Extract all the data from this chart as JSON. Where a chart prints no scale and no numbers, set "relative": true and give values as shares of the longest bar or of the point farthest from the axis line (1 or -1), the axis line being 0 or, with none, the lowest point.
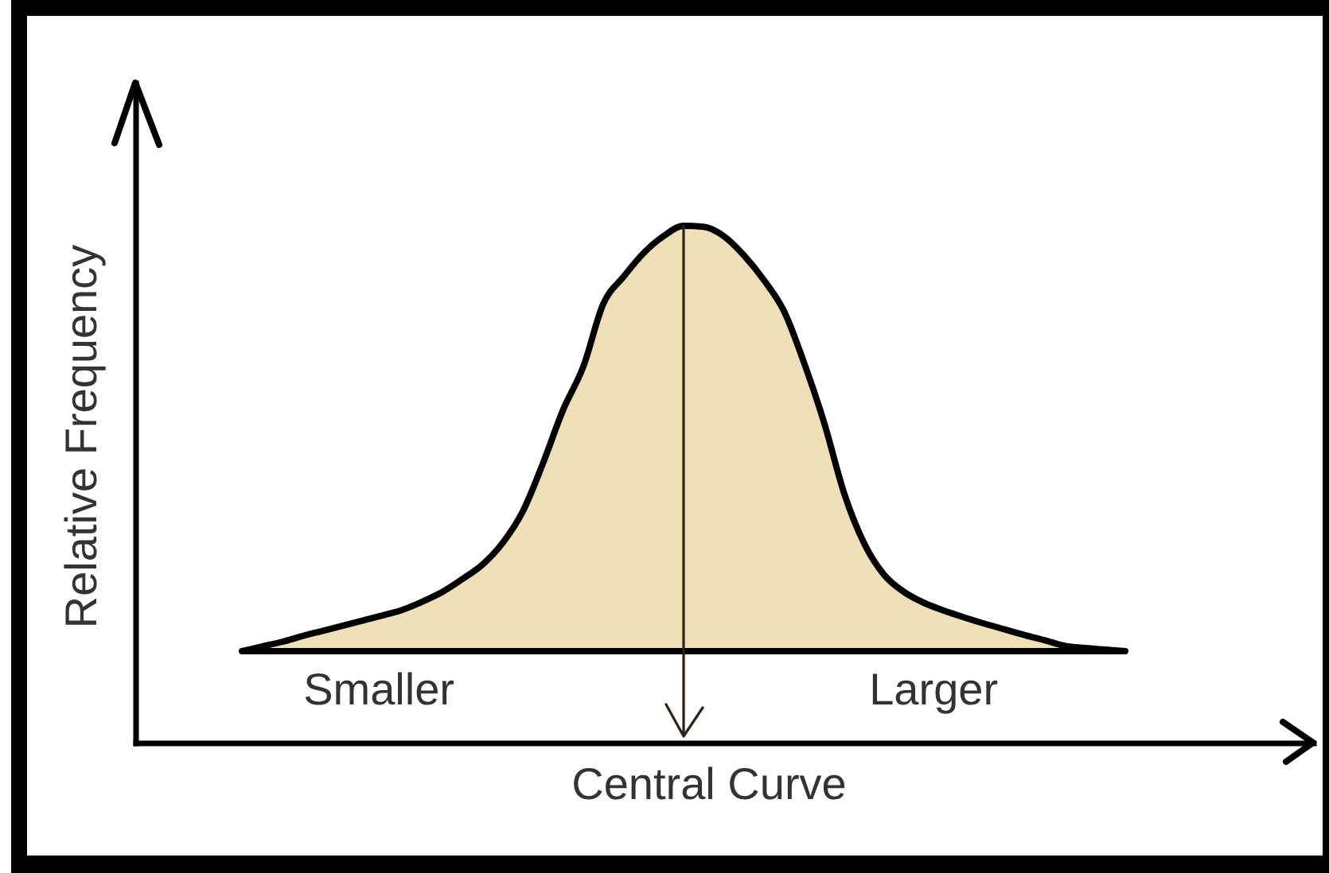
{
  "chart_data": {
    "type": "area",
    "relative": true,
    "ylabel": "Relative Frequency",
    "xlabel": "Central Curve",
    "annotations": [
      "Smaller",
      "Larger"
    ],
    "color": "#efe0b7",
    "categories": [
      null,
      null,
      null,
      null,
      null,
      null,
      null,
      null,
      null,
      null,
      null,
      null,
      null,
      null,
      null,
      null,
      null,
      null,
      null,
      null,
      null,
      null,
      null,
      null,
      null,
      null,
      null,
      null,
      null,
      null,
      null,
      null,
      null,
      null,
      null,
      null,
      null,
      null,
      null,
      null,
      null,
      null,
      null,
      null,
      null
    ],
    "values": [
      0.177,
      0.186,
      0.195,
      0.206,
      0.216,
      0.226,
      0.236,
      0.246,
      0.257,
      0.273,
      0.292,
      0.317,
      0.345,
      0.387,
      0.448,
      0.541,
      0.644,
      0.727,
      0.849,
      0.901,
      0.947,
      0.98,
      1,
      0.998,
      0.98,
      0.943,
      0.895,
      0.835,
      0.735,
      0.619,
      0.482,
      0.385,
      0.324,
      0.291,
      0.27,
      0.255,
      0.242,
      0.23,
      0.219,
      0.208,
      0.198,
      0.187,
      0.183,
      0.18,
      0.177
    ]
  }
}
